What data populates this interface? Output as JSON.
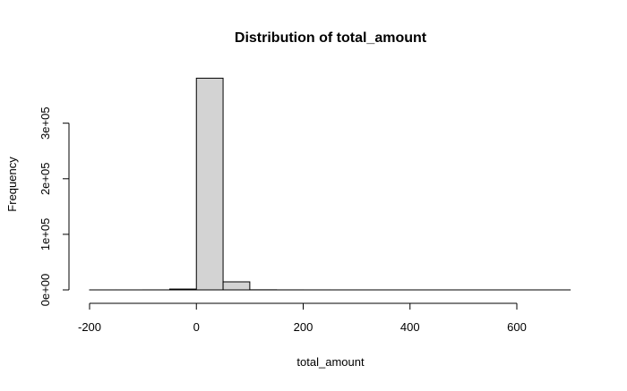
{
  "chart_data": {
    "type": "histogram",
    "title": "Distribution of total_amount",
    "xlabel": "total_amount",
    "ylabel": "Frequency",
    "xlim": [
      -200,
      700
    ],
    "ylim": [
      0,
      380000
    ],
    "x_ticks": [
      -200,
      0,
      200,
      400,
      600
    ],
    "x_tick_labels": [
      "-200",
      "0",
      "200",
      "400",
      "600"
    ],
    "y_ticks": [
      0,
      100000,
      200000,
      300000
    ],
    "y_tick_labels": [
      "0e+00",
      "1e+05",
      "2e+05",
      "3e+05"
    ],
    "bin_edges": [
      -200,
      -150,
      -100,
      -50,
      0,
      50,
      100,
      150,
      200,
      250,
      300,
      350,
      400,
      450,
      500,
      550,
      600,
      650,
      700
    ],
    "counts": [
      10,
      10,
      50,
      1500,
      381000,
      14500,
      200,
      50,
      20,
      10,
      5,
      5,
      2,
      2,
      1,
      1,
      1,
      1
    ],
    "bar_fill": "#d3d3d3",
    "bar_stroke": "#000000",
    "grid": false,
    "legend": "none"
  }
}
